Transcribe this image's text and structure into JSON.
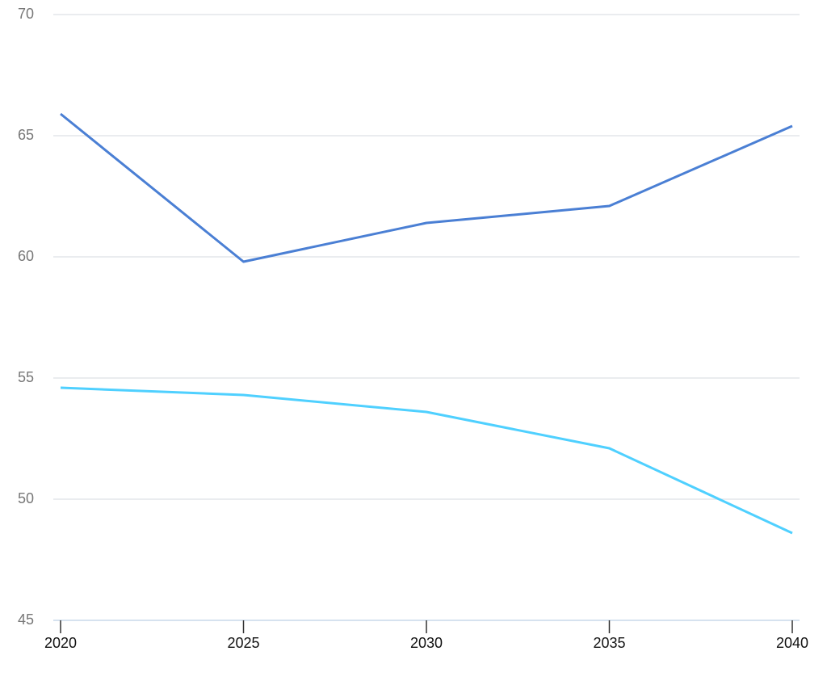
{
  "chart_data": {
    "type": "line",
    "x": [
      2020,
      2025,
      2030,
      2035,
      2040
    ],
    "xlim": [
      2020,
      2040
    ],
    "xticks": [
      2020,
      2025,
      2030,
      2035,
      2040
    ],
    "ylim": [
      45,
      70
    ],
    "yticks": [
      45,
      50,
      55,
      60,
      65,
      70
    ],
    "grid": true,
    "series": [
      {
        "color": "#4a7fd4",
        "values": [
          65.9,
          59.8,
          61.4,
          62.1,
          65.4
        ]
      },
      {
        "color": "#4fd0ff",
        "values": [
          54.6,
          54.3,
          53.6,
          52.1,
          48.6
        ]
      }
    ]
  }
}
